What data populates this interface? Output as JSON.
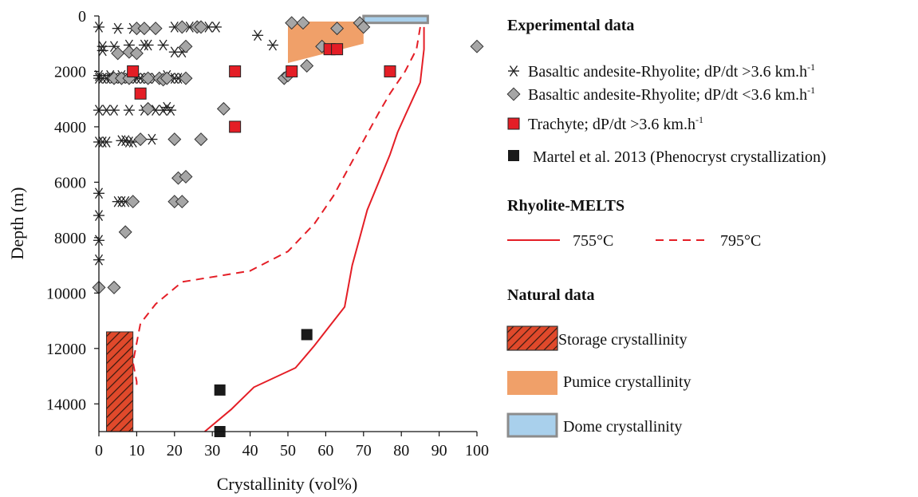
{
  "chart_data": {
    "type": "scatter",
    "xlabel": "Crystallinity (vol%)",
    "ylabel": "Depth (m)",
    "xlim": [
      0,
      100
    ],
    "ylim": [
      0,
      15000
    ],
    "y_inverted": true,
    "x_ticks": [
      0,
      10,
      20,
      30,
      40,
      50,
      60,
      70,
      80,
      90,
      100
    ],
    "y_ticks": [
      0,
      2000,
      4000,
      6000,
      8000,
      10000,
      12000,
      14000
    ],
    "legend_position": "right",
    "legend": {
      "experimental_title": "Experimental data",
      "melts_title": "Rhyolite-MELTS",
      "natural_title": "Natural data",
      "ba_fast": "Basaltic andesite-Rhyolite; dP/dt >3.6 km.h",
      "ba_slow": "Basaltic andesite-Rhyolite; dP/dt <3.6 km.h",
      "trachyte": "Trachyte; dP/dt >3.6 km.h",
      "units_sup": "-1",
      "martel": "Martel et al. 2013 (Phenocryst crystallization)",
      "t755": "755°C",
      "t795": "795°C",
      "storage": "Storage crystallinity",
      "pumice": "Pumice crystallinity",
      "dome": "Dome crystallinity"
    },
    "colors": {
      "trachyte": "#e41e26",
      "diamond": "#a6a6a6",
      "melts": "#e41e26",
      "storage": "#e0492b",
      "pumice": "#f0a069",
      "dome": "#a9d0ec",
      "dome_border": "#8c8c8c",
      "martel": "#1a1a1a"
    },
    "series": [
      {
        "name": "Basaltic andesite-Rhyolite; dP/dt >3.6 km.h-1",
        "marker": "asterisk",
        "points": [
          [
            0,
            400
          ],
          [
            5,
            450
          ],
          [
            9,
            450
          ],
          [
            20,
            400
          ],
          [
            24,
            400
          ],
          [
            29,
            400
          ],
          [
            31,
            400
          ],
          [
            42,
            700
          ],
          [
            46,
            1050
          ],
          [
            1,
            1100
          ],
          [
            4,
            1100
          ],
          [
            8,
            1050
          ],
          [
            12,
            1050
          ],
          [
            13,
            1050
          ],
          [
            17,
            1050
          ],
          [
            20,
            1300
          ],
          [
            22,
            1300
          ],
          [
            1,
            1250
          ],
          [
            0,
            2150
          ],
          [
            0,
            2250
          ],
          [
            1,
            2250
          ],
          [
            2,
            2250
          ],
          [
            3,
            2250
          ],
          [
            4,
            2250
          ],
          [
            5,
            2250
          ],
          [
            6,
            2250
          ],
          [
            7,
            2250
          ],
          [
            8,
            2250
          ],
          [
            9,
            2250
          ],
          [
            10,
            2250
          ],
          [
            11,
            2250
          ],
          [
            12,
            2250
          ],
          [
            13,
            2250
          ],
          [
            15,
            2250
          ],
          [
            17,
            2250
          ],
          [
            19,
            2250
          ],
          [
            20,
            2250
          ],
          [
            21,
            2250
          ],
          [
            22,
            2250
          ],
          [
            3,
            2150
          ],
          [
            6,
            2150
          ],
          [
            9,
            2150
          ],
          [
            18,
            2150
          ],
          [
            0,
            3400
          ],
          [
            2,
            3400
          ],
          [
            4,
            3400
          ],
          [
            8,
            3400
          ],
          [
            12,
            3400
          ],
          [
            15,
            3400
          ],
          [
            17,
            3400
          ],
          [
            19,
            3400
          ],
          [
            18,
            3300
          ],
          [
            0,
            4550
          ],
          [
            1,
            4550
          ],
          [
            2,
            4550
          ],
          [
            6,
            4500
          ],
          [
            7,
            4500
          ],
          [
            8,
            4550
          ],
          [
            9,
            4550
          ],
          [
            14,
            4450
          ],
          [
            0,
            6400
          ],
          [
            5,
            6700
          ],
          [
            6,
            6700
          ],
          [
            7,
            6700
          ],
          [
            0,
            7200
          ],
          [
            0,
            8100
          ],
          [
            0,
            8800
          ]
        ]
      },
      {
        "name": "Basaltic andesite-Rhyolite; dP/dt <3.6 km.h-1",
        "marker": "diamond",
        "points": [
          [
            10,
            450
          ],
          [
            12,
            450
          ],
          [
            15,
            450
          ],
          [
            22,
            400
          ],
          [
            26,
            400
          ],
          [
            27,
            400
          ],
          [
            51,
            250
          ],
          [
            54,
            250
          ],
          [
            63,
            450
          ],
          [
            69,
            250
          ],
          [
            70,
            400
          ],
          [
            5,
            1350
          ],
          [
            8,
            1300
          ],
          [
            10,
            1350
          ],
          [
            23,
            1100
          ],
          [
            59,
            1100
          ],
          [
            100,
            1100
          ],
          [
            55,
            1800
          ],
          [
            49,
            2250
          ],
          [
            50,
            2150
          ],
          [
            4,
            2250
          ],
          [
            6,
            2250
          ],
          [
            8,
            2250
          ],
          [
            13,
            2250
          ],
          [
            16,
            2250
          ],
          [
            17,
            2300
          ],
          [
            18,
            2250
          ],
          [
            23,
            2250
          ],
          [
            33,
            3350
          ],
          [
            13,
            3350
          ],
          [
            11,
            4450
          ],
          [
            20,
            4450
          ],
          [
            27,
            4450
          ],
          [
            21,
            5850
          ],
          [
            23,
            5800
          ],
          [
            9,
            6700
          ],
          [
            20,
            6700
          ],
          [
            22,
            6700
          ],
          [
            7,
            7800
          ],
          [
            0,
            9800
          ],
          [
            4,
            9800
          ]
        ]
      },
      {
        "name": "Trachyte; dP/dt >3.6 km.h-1",
        "marker": "square",
        "points": [
          [
            9,
            2000
          ],
          [
            36,
            2000
          ],
          [
            51,
            2000
          ],
          [
            77,
            2000
          ],
          [
            61,
            1200
          ],
          [
            63,
            1200
          ],
          [
            11,
            2800
          ],
          [
            36,
            4000
          ]
        ]
      },
      {
        "name": "Martel et al. 2013 (Phenocryst crystallization)",
        "marker": "square-black",
        "points": [
          [
            55,
            11500
          ],
          [
            32,
            13500
          ],
          [
            32,
            15000
          ]
        ]
      },
      {
        "name": "755°C",
        "line": "solid",
        "points": [
          [
            86,
            400
          ],
          [
            86,
            1200
          ],
          [
            85,
            2400
          ],
          [
            83,
            3000
          ],
          [
            81,
            3600
          ],
          [
            79,
            4200
          ],
          [
            77,
            5000
          ],
          [
            74,
            6000
          ],
          [
            71,
            7000
          ],
          [
            69,
            8000
          ],
          [
            67,
            9000
          ],
          [
            65,
            10500
          ],
          [
            61,
            11200
          ],
          [
            57,
            11900
          ],
          [
            52,
            12700
          ],
          [
            41,
            13400
          ],
          [
            35,
            14200
          ],
          [
            28,
            15000
          ]
        ]
      },
      {
        "name": "795°C",
        "line": "dashed",
        "points": [
          [
            85,
            400
          ],
          [
            84,
            1200
          ],
          [
            81,
            2000
          ],
          [
            77,
            2800
          ],
          [
            74,
            3500
          ],
          [
            70,
            4500
          ],
          [
            66,
            5500
          ],
          [
            62,
            6500
          ],
          [
            57,
            7500
          ],
          [
            50,
            8500
          ],
          [
            40,
            9200
          ],
          [
            22,
            9600
          ],
          [
            15,
            10400
          ],
          [
            11,
            11100
          ],
          [
            10,
            11800
          ],
          [
            9,
            12500
          ],
          [
            10,
            13200
          ],
          [
            10,
            13500
          ]
        ]
      }
    ],
    "regions": [
      {
        "name": "Storage crystallinity",
        "x": [
          2,
          9
        ],
        "y": [
          11400,
          15000
        ]
      },
      {
        "name": "Pumice crystallinity",
        "polygon": [
          [
            50,
            200
          ],
          [
            70,
            200
          ],
          [
            70,
            1000
          ],
          [
            50,
            1700
          ]
        ]
      },
      {
        "name": "Dome crystallinity",
        "x": [
          70,
          87
        ],
        "y": [
          0,
          250
        ]
      }
    ]
  }
}
